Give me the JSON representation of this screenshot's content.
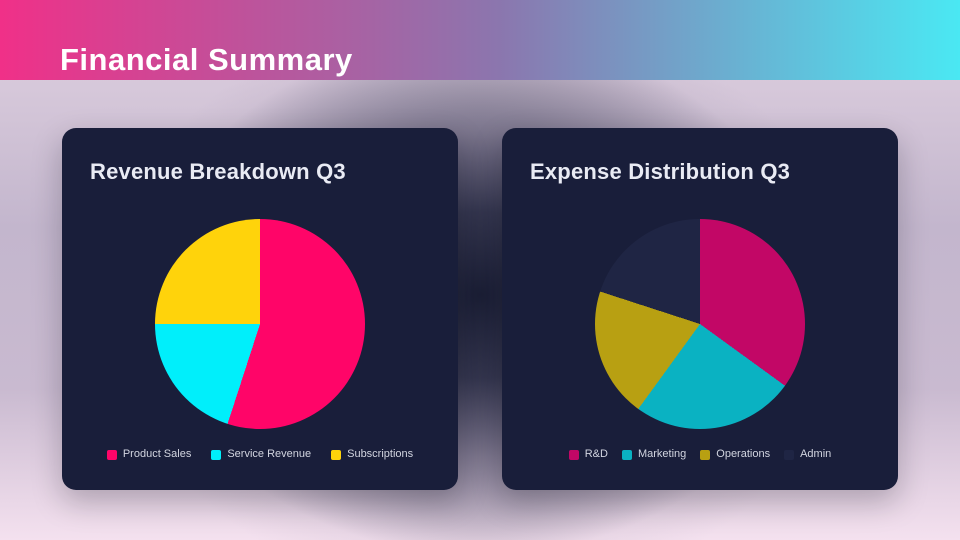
{
  "header": {
    "title": "Financial Summary"
  },
  "theme": {
    "banner_gradient_left": "#F03088",
    "banner_gradient_mid": "#8B76AE",
    "banner_gradient_right": "#4AE8F3",
    "card_background": "#191E3A",
    "card_title_color": "#E9EBF4",
    "legend_text_color": "#D2D5E0"
  },
  "chart_data": [
    {
      "type": "pie",
      "title": "Revenue Breakdown Q3",
      "labels": [
        "Product Sales",
        "Service Revenue",
        "Subscriptions"
      ],
      "values": [
        55,
        20,
        25
      ],
      "unit": "percent",
      "colors": [
        "#FF0568",
        "#00EFFB",
        "#FFD30B"
      ],
      "start_angle_deg": 0,
      "direction": "clockwise",
      "legend_position": "bottom"
    },
    {
      "type": "pie",
      "title": "Expense Distribution Q3",
      "labels": [
        "R&D",
        "Marketing",
        "Operations",
        "Admin"
      ],
      "values": [
        35,
        25,
        20,
        20
      ],
      "unit": "percent",
      "colors": [
        "#C20766",
        "#0AB2C2",
        "#B8A012",
        "#1F2544"
      ],
      "start_angle_deg": 0,
      "direction": "clockwise",
      "legend_position": "bottom"
    }
  ]
}
